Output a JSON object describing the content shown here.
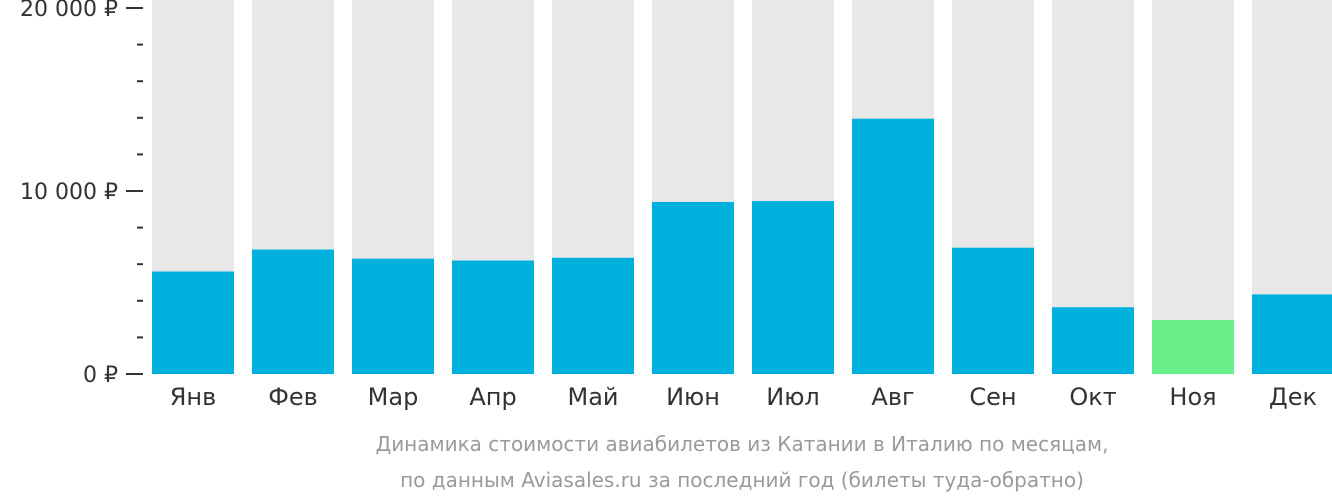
{
  "chart_data": {
    "type": "bar",
    "categories": [
      "Янв",
      "Фев",
      "Мар",
      "Апр",
      "Май",
      "Июн",
      "Июл",
      "Авг",
      "Сен",
      "Окт",
      "Ноя",
      "Дек"
    ],
    "values": [
      5600,
      6800,
      6300,
      6200,
      6350,
      9400,
      9450,
      13950,
      6900,
      3650,
      2950,
      4350
    ],
    "ylim": [
      0,
      20000
    ],
    "yticks": [
      {
        "value": 0,
        "label": "0 ₽"
      },
      {
        "value": 10000,
        "label": "10 000 ₽"
      },
      {
        "value": 20000,
        "label": "20 000 ₽"
      }
    ],
    "minor_tick_step": 2000,
    "highlight_index": 10,
    "colors": {
      "bar": "#00b0dd",
      "highlight": "#6af08a",
      "background_bar": "#e8e8e8",
      "axis": "#333333"
    }
  },
  "caption": {
    "line1": "Динамика стоимости авиабилетов из Катании в Италию по месяцам,",
    "line2": "по данным Aviasales.ru за последний год (билеты туда-обратно)"
  }
}
